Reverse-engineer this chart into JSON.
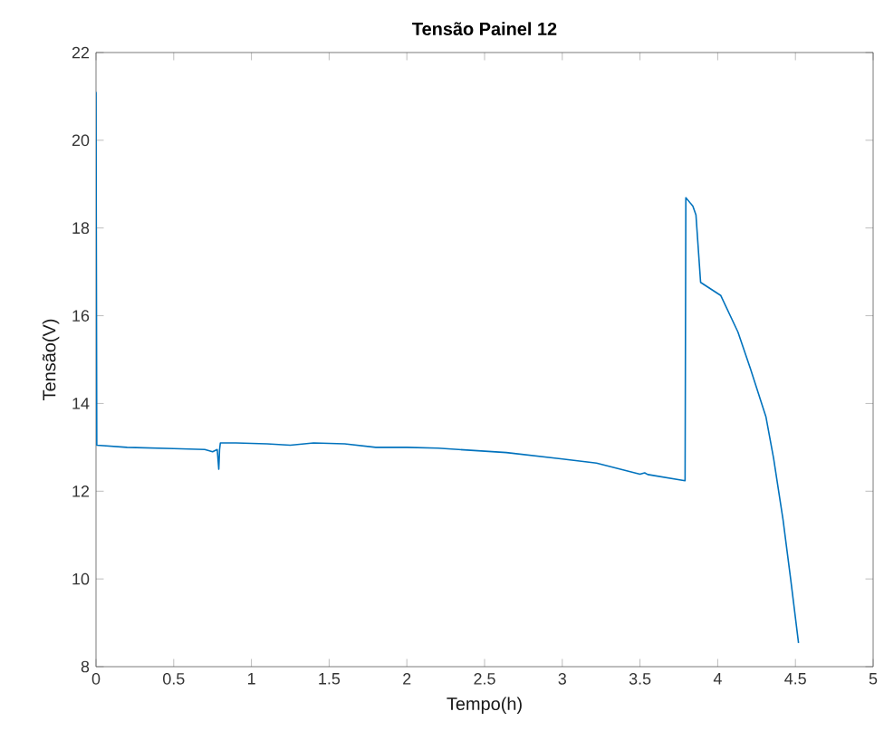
{
  "chart_data": {
    "type": "line",
    "title": "Tensão Painel 12",
    "xlabel": "Tempo(h)",
    "ylabel": "Tensão(V)",
    "xlim": [
      0,
      5
    ],
    "ylim": [
      8,
      22
    ],
    "xticks": [
      0,
      0.5,
      1,
      1.5,
      2,
      2.5,
      3,
      3.5,
      4,
      4.5,
      5
    ],
    "yticks": [
      8,
      10,
      12,
      14,
      16,
      18,
      20,
      22
    ],
    "grid": false,
    "series": [
      {
        "color": "#0072bd",
        "x": [
          0,
          0.005,
          0.2,
          0.5,
          0.7,
          0.75,
          0.78,
          0.79,
          0.795,
          0.8,
          0.9,
          1.1,
          1.25,
          1.4,
          1.6,
          1.8,
          2,
          2.2,
          2.64,
          2.99,
          3.22,
          3.5,
          3.53,
          3.55,
          3.79,
          3.795,
          3.84,
          3.86,
          3.89,
          4.02,
          4.13,
          4.21,
          4.31,
          4.36,
          4.42,
          4.47,
          4.52
        ],
        "values": [
          21.1,
          13.05,
          13.0,
          12.97,
          12.95,
          12.9,
          12.95,
          12.5,
          12.95,
          13.1,
          13.1,
          13.08,
          13.05,
          13.1,
          13.08,
          13.0,
          13.0,
          12.98,
          12.88,
          12.74,
          12.64,
          12.39,
          12.42,
          12.38,
          12.24,
          18.69,
          18.5,
          18.3,
          16.76,
          16.46,
          15.63,
          14.8,
          13.7,
          12.74,
          11.36,
          9.98,
          8.54
        ]
      }
    ]
  }
}
